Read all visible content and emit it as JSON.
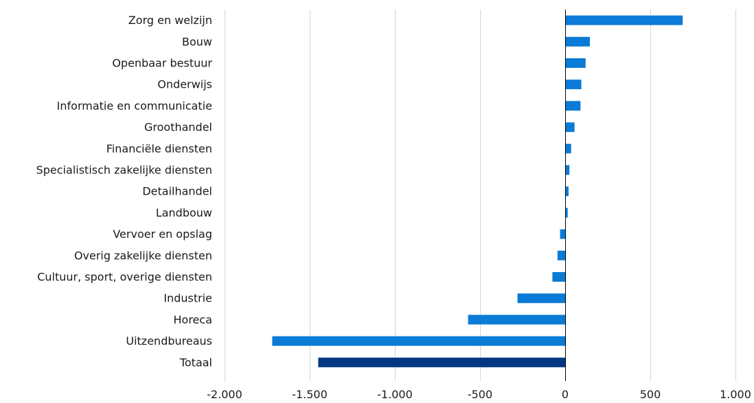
{
  "chart_data": {
    "type": "bar",
    "orientation": "horizontal",
    "title": "",
    "xlabel": "",
    "ylabel": "",
    "xlim": [
      -2000,
      1000
    ],
    "x_ticks": [
      -2000,
      -1500,
      -1000,
      -500,
      0,
      500,
      1000
    ],
    "x_tick_labels": [
      "-2.000",
      "-1.500",
      "-1.000",
      "-500",
      "0",
      "500",
      "1.000"
    ],
    "grid": "vertical",
    "legend": "none",
    "categories": [
      "Zorg en welzijn",
      "Bouw",
      "Openbaar bestuur",
      "Onderwijs",
      "Informatie en communicatie",
      "Groothandel",
      "Financiële diensten",
      "Specialistisch zakelijke diensten",
      "Detailhandel",
      "Landbouw",
      "Vervoer en opslag",
      "Overig zakelijke diensten",
      "Cultuur, sport, overige diensten",
      "Industrie",
      "Horeca",
      "Uitzendbureaus",
      "Totaal"
    ],
    "values": [
      690,
      145,
      120,
      95,
      90,
      55,
      35,
      25,
      20,
      15,
      -30,
      -45,
      -75,
      -280,
      -570,
      -1720,
      -1450
    ],
    "colors": {
      "bar": "#0a7bd6",
      "total": "#003883",
      "grid": "#d4d4d4",
      "axis": "#000000"
    }
  }
}
